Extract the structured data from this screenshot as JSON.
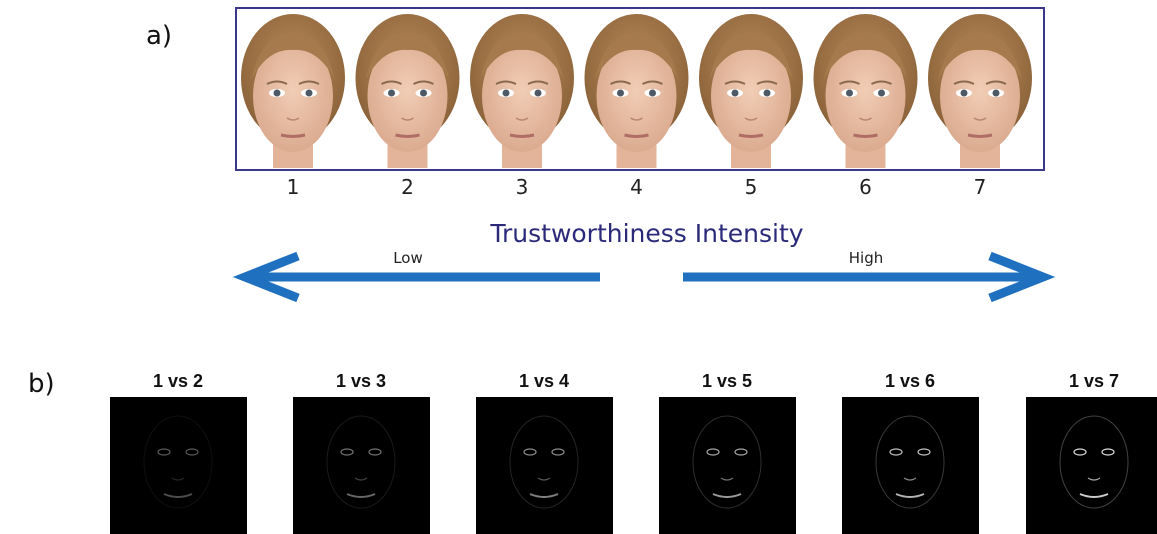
{
  "panel_a": {
    "label": "a)",
    "faces": [
      "1",
      "2",
      "3",
      "4",
      "5",
      "6",
      "7"
    ],
    "axis_title": "Trustworthiness Intensity",
    "low": "Low",
    "high": "High"
  },
  "panel_b": {
    "label": "b)",
    "comparisons": [
      "1 vs 2",
      "1 vs 3",
      "1 vs 4",
      "1 vs 5",
      "1 vs 6",
      "1 vs 7"
    ]
  }
}
